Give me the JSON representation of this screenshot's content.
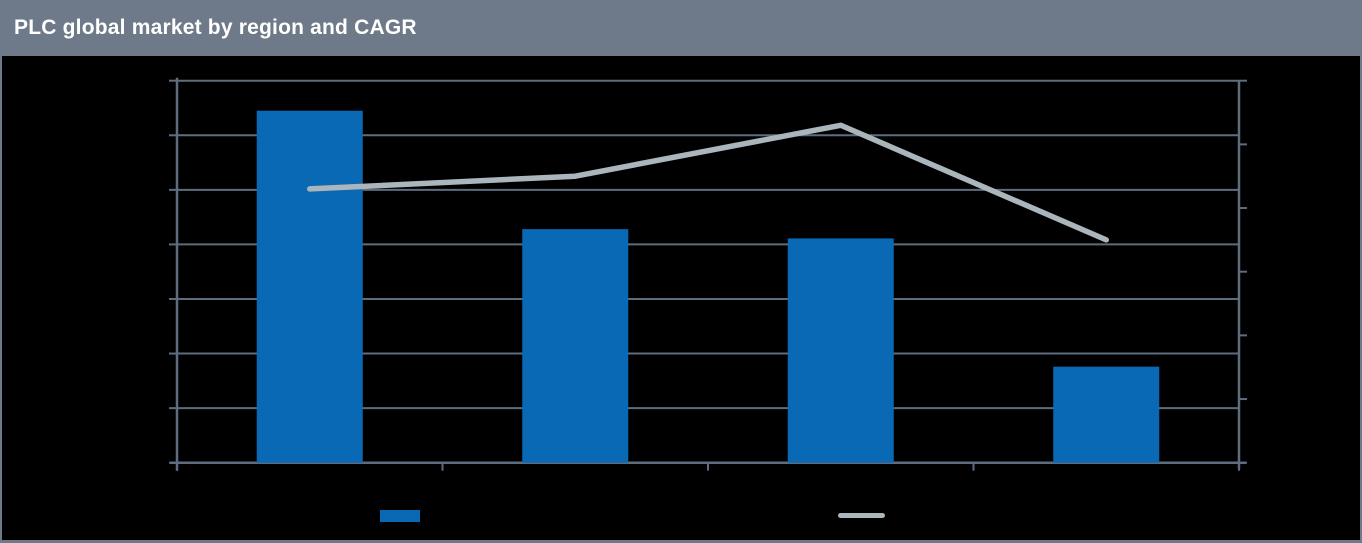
{
  "header": {
    "title": "PLC global market by region and CAGR"
  },
  "colors": {
    "header_bg": "#6E7A8A",
    "border": "#6E7A8A",
    "chart_bg": "#000000",
    "bar": "#0A69B4",
    "line": "#ABB5BC",
    "grid": "#5E6D7E",
    "title_text": "#FFFFFF"
  },
  "chart_data": {
    "type": "combo",
    "title": "PLC global market by region and CAGR",
    "categories": [
      "",
      "",
      "",
      ""
    ],
    "series": [
      {
        "name": "market-by-region-bars",
        "type": "bar",
        "axis": "left",
        "color": "#0A69B4",
        "values": [
          6.45,
          4.28,
          4.11,
          1.76
        ]
      },
      {
        "name": "cagr-line",
        "type": "line",
        "axis": "right",
        "color": "#ABB5BC",
        "values": [
          4.3,
          4.5,
          5.3,
          3.5
        ]
      }
    ],
    "left_axis": {
      "range": [
        0,
        7
      ],
      "gridline_count": 8,
      "tick_labels": []
    },
    "right_axis": {
      "range": [
        0,
        6
      ],
      "tick_count": 7,
      "tick_labels": []
    },
    "x_axis": {
      "tick_count": 5,
      "tick_labels": []
    },
    "grid": true,
    "legend_position": "bottom",
    "legend": [
      {
        "series": "market-by-region-bars",
        "swatch": "bar",
        "label": ""
      },
      {
        "series": "cagr-line",
        "swatch": "line",
        "label": ""
      }
    ]
  }
}
